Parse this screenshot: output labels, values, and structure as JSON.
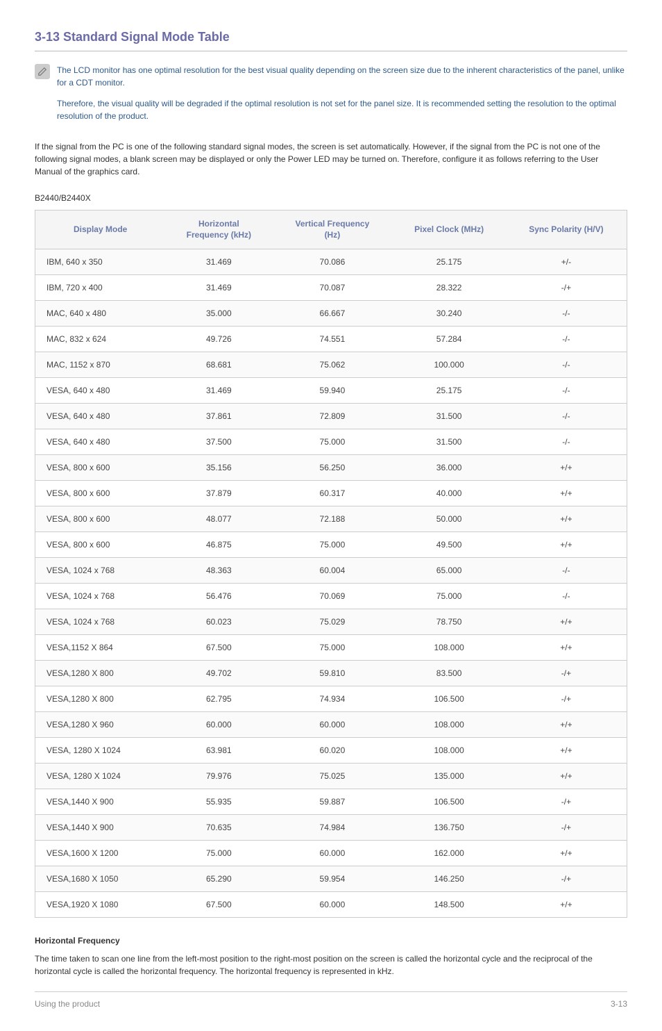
{
  "heading": {
    "num": "3-13",
    "title": "Standard Signal Mode Table"
  },
  "note": {
    "p1": "The LCD monitor has one optimal resolution for the best visual quality depending on the screen size due to the inherent characteristics of the panel, unlike for a CDT monitor.",
    "p2": "Therefore, the visual quality will be degraded if the optimal resolution is not set for the panel size. It is recommended setting the resolution to the optimal resolution of the product."
  },
  "intro": "If the signal from the PC is one of the following standard signal modes, the screen is set automatically. However, if the signal from the PC is not one of the following signal modes, a blank screen may be displayed or only the Power LED may be turned on. Therefore, configure it as follows referring to the User Manual of the graphics card.",
  "model": "B2440/B2440X",
  "table": {
    "columns": [
      "Display Mode",
      "Horizontal Frequency (kHz)",
      "Vertical Frequency (Hz)",
      "Pixel Clock (MHz)",
      "Sync Polarity (H/V)"
    ],
    "rows": [
      [
        "IBM, 640 x 350",
        "31.469",
        "70.086",
        "25.175",
        "+/-"
      ],
      [
        "IBM, 720 x 400",
        "31.469",
        "70.087",
        "28.322",
        "-/+"
      ],
      [
        "MAC, 640 x 480",
        "35.000",
        "66.667",
        "30.240",
        "-/-"
      ],
      [
        "MAC, 832 x 624",
        "49.726",
        "74.551",
        "57.284",
        "-/-"
      ],
      [
        "MAC, 1152 x 870",
        "68.681",
        "75.062",
        "100.000",
        "-/-"
      ],
      [
        "VESA, 640 x 480",
        "31.469",
        "59.940",
        "25.175",
        "-/-"
      ],
      [
        "VESA, 640 x 480",
        "37.861",
        "72.809",
        "31.500",
        "-/-"
      ],
      [
        "VESA, 640 x 480",
        "37.500",
        "75.000",
        "31.500",
        "-/-"
      ],
      [
        "VESA, 800 x 600",
        "35.156",
        "56.250",
        "36.000",
        "+/+"
      ],
      [
        "VESA, 800 x 600",
        "37.879",
        "60.317",
        "40.000",
        "+/+"
      ],
      [
        "VESA, 800 x 600",
        "48.077",
        "72.188",
        "50.000",
        "+/+"
      ],
      [
        "VESA, 800 x 600",
        "46.875",
        "75.000",
        "49.500",
        "+/+"
      ],
      [
        "VESA, 1024 x 768",
        "48.363",
        "60.004",
        "65.000",
        "-/-"
      ],
      [
        "VESA, 1024 x 768",
        "56.476",
        "70.069",
        "75.000",
        "-/-"
      ],
      [
        "VESA, 1024 x 768",
        "60.023",
        "75.029",
        "78.750",
        "+/+"
      ],
      [
        "VESA,1152 X 864",
        "67.500",
        "75.000",
        "108.000",
        "+/+"
      ],
      [
        "VESA,1280 X 800",
        "49.702",
        "59.810",
        "83.500",
        "-/+"
      ],
      [
        "VESA,1280 X 800",
        "62.795",
        "74.934",
        "106.500",
        "-/+"
      ],
      [
        "VESA,1280 X 960",
        "60.000",
        "60.000",
        "108.000",
        "+/+"
      ],
      [
        "VESA, 1280 X 1024",
        "63.981",
        "60.020",
        "108.000",
        "+/+"
      ],
      [
        "VESA, 1280 X 1024",
        "79.976",
        "75.025",
        "135.000",
        "+/+"
      ],
      [
        "VESA,1440 X 900",
        "55.935",
        "59.887",
        "106.500",
        "-/+"
      ],
      [
        "VESA,1440 X 900",
        "70.635",
        "74.984",
        "136.750",
        "-/+"
      ],
      [
        "VESA,1600 X 1200",
        "75.000",
        "60.000",
        "162.000",
        "+/+"
      ],
      [
        "VESA,1680 X 1050",
        "65.290",
        "59.954",
        "146.250",
        "-/+"
      ],
      [
        "VESA,1920 X 1080",
        "67.500",
        "60.000",
        "148.500",
        "+/+"
      ]
    ]
  },
  "def": {
    "heading": "Horizontal Frequency",
    "text": "The time taken to scan one line from the left-most position to the right-most position on the screen is called the horizontal cycle and the reciprocal of the horizontal cycle is called the horizontal frequency. The horizontal frequency is represented in kHz."
  },
  "footer": {
    "left": "Using the product",
    "right": "3-13"
  },
  "colors": {
    "heading": "#6a6aa8",
    "note_text": "#2c5a8a",
    "th_text": "#6a7aa8",
    "border": "#cccccc",
    "row_odd_bg": "#fafafa",
    "footer_text": "#888888"
  }
}
